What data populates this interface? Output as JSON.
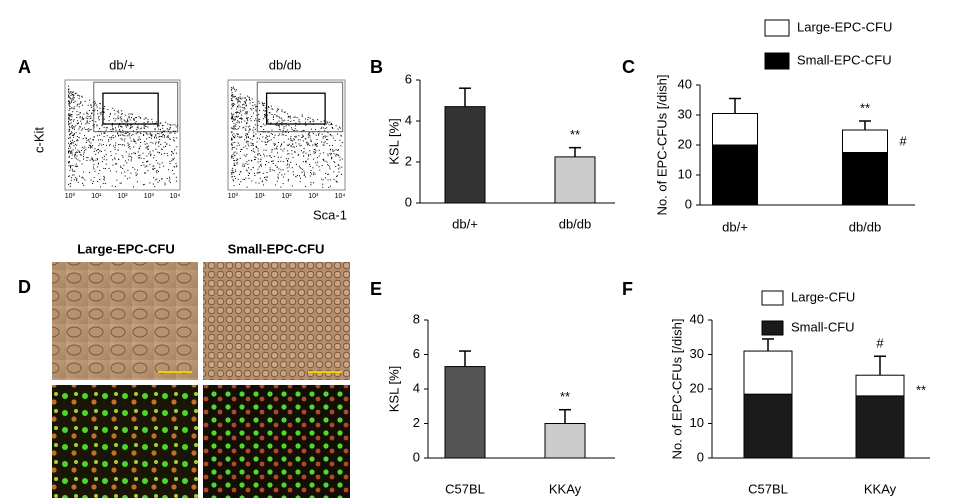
{
  "panel_a": {
    "letter": "A",
    "left_title": "db/+",
    "right_title": "db/db",
    "y_label": "c-Kit",
    "x_label": "Sca-1",
    "ticks": [
      "10⁰",
      "10¹",
      "10²",
      "10³",
      "10⁴"
    ]
  },
  "panel_d": {
    "letter": "D",
    "left_title": "Large-EPC-CFU",
    "right_title": "Small-EPC-CFU"
  },
  "chart_data": [
    {
      "type": "bar",
      "letter": "B",
      "ylabel": "KSL [%]",
      "categories": [
        "db/+",
        "db/db"
      ],
      "values": [
        4.7,
        2.25
      ],
      "errors": [
        0.9,
        0.45
      ],
      "colors": [
        "#333333",
        "#cccccc"
      ],
      "ylim": [
        0,
        6
      ],
      "yticks": [
        0,
        2,
        4,
        6
      ],
      "annotations": [
        "**"
      ]
    },
    {
      "type": "stacked_bar",
      "letter": "C",
      "ylabel": "No. of EPC-CFUs [/dish]",
      "categories": [
        "db/+",
        "db/db"
      ],
      "series": [
        {
          "name": "Small-EPC-CFU",
          "color": "#000000",
          "values": [
            20,
            17.5
          ]
        },
        {
          "name": "Large-EPC-CFU",
          "color": "#ffffff",
          "values": [
            10.5,
            7.5
          ]
        }
      ],
      "errors": [
        5,
        3
      ],
      "ylim": [
        0,
        40
      ],
      "yticks": [
        0,
        10,
        20,
        30,
        40
      ],
      "annotations": [
        "**",
        "#"
      ]
    },
    {
      "type": "bar",
      "letter": "E",
      "ylabel": "KSL [%]",
      "categories": [
        "C57BL",
        "KKAy"
      ],
      "values": [
        5.3,
        2.0
      ],
      "errors": [
        0.9,
        0.8
      ],
      "colors": [
        "#555555",
        "#cccccc"
      ],
      "ylim": [
        0,
        8
      ],
      "yticks": [
        0,
        2,
        4,
        6,
        8
      ],
      "annotations": [
        "**"
      ]
    },
    {
      "type": "stacked_bar",
      "letter": "F",
      "ylabel": "No. of EPC-CFUs [/dish]",
      "categories": [
        "C57BL",
        "KKAy"
      ],
      "series": [
        {
          "name": "Small-CFU",
          "color": "#1a1a1a",
          "values": [
            18.5,
            18
          ]
        },
        {
          "name": "Large-CFU",
          "color": "#ffffff",
          "values": [
            12.5,
            6
          ]
        }
      ],
      "errors": [
        3.5,
        5.5
      ],
      "ylim": [
        0,
        40
      ],
      "yticks": [
        0,
        10,
        20,
        30,
        40
      ],
      "annotations": [
        "#",
        "**"
      ]
    }
  ]
}
